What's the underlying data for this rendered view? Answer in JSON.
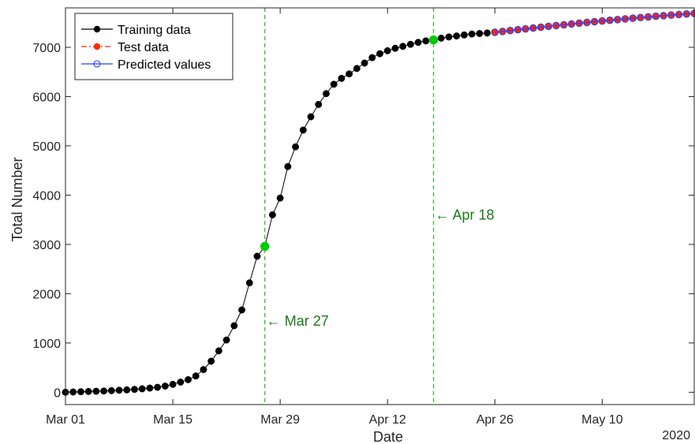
{
  "chart_data": {
    "type": "line",
    "title": "",
    "xlabel": "Date",
    "ylabel": "Total Number",
    "year_label": "2020",
    "x_domain": [
      "2020-03-01",
      "2020-05-22"
    ],
    "ylim": [
      -250,
      7800
    ],
    "yticks": [
      0,
      1000,
      2000,
      3000,
      4000,
      5000,
      6000,
      7000
    ],
    "xticks": [
      {
        "date": "2020-03-01",
        "label": "Mar 01"
      },
      {
        "date": "2020-03-15",
        "label": "Mar 15"
      },
      {
        "date": "2020-03-29",
        "label": "Mar 29"
      },
      {
        "date": "2020-04-12",
        "label": "Apr 12"
      },
      {
        "date": "2020-04-26",
        "label": "Apr 26"
      },
      {
        "date": "2020-05-10",
        "label": "May 10"
      }
    ],
    "grid": false,
    "legend_position": "top-left",
    "colors": {
      "training": "#000000",
      "test": "#ff2a00",
      "predicted": "#2a3cff",
      "marker": "#00cc00",
      "annotation": "#1a7a1a",
      "vline": "#33bb33"
    },
    "series": [
      {
        "name": "Training data",
        "style": "black line with filled black markers",
        "points": [
          [
            "2020-03-01",
            0
          ],
          [
            "2020-03-02",
            5
          ],
          [
            "2020-03-03",
            10
          ],
          [
            "2020-03-04",
            15
          ],
          [
            "2020-03-05",
            20
          ],
          [
            "2020-03-06",
            25
          ],
          [
            "2020-03-07",
            32
          ],
          [
            "2020-03-08",
            40
          ],
          [
            "2020-03-09",
            48
          ],
          [
            "2020-03-10",
            58
          ],
          [
            "2020-03-11",
            70
          ],
          [
            "2020-03-12",
            85
          ],
          [
            "2020-03-13",
            100
          ],
          [
            "2020-03-14",
            125
          ],
          [
            "2020-03-15",
            160
          ],
          [
            "2020-03-16",
            205
          ],
          [
            "2020-03-17",
            255
          ],
          [
            "2020-03-18",
            330
          ],
          [
            "2020-03-19",
            460
          ],
          [
            "2020-03-20",
            630
          ],
          [
            "2020-03-21",
            840
          ],
          [
            "2020-03-22",
            1060
          ],
          [
            "2020-03-23",
            1350
          ],
          [
            "2020-03-24",
            1670
          ],
          [
            "2020-03-25",
            2220
          ],
          [
            "2020-03-26",
            2760
          ],
          [
            "2020-03-27",
            2960
          ],
          [
            "2020-03-28",
            3600
          ],
          [
            "2020-03-29",
            3940
          ],
          [
            "2020-03-30",
            4580
          ],
          [
            "2020-03-31",
            4980
          ],
          [
            "2020-04-01",
            5320
          ],
          [
            "2020-04-02",
            5590
          ],
          [
            "2020-04-03",
            5840
          ],
          [
            "2020-04-04",
            6060
          ],
          [
            "2020-04-05",
            6250
          ],
          [
            "2020-04-06",
            6370
          ],
          [
            "2020-04-07",
            6460
          ],
          [
            "2020-04-08",
            6570
          ],
          [
            "2020-04-09",
            6680
          ],
          [
            "2020-04-10",
            6790
          ],
          [
            "2020-04-11",
            6870
          ],
          [
            "2020-04-12",
            6930
          ],
          [
            "2020-04-13",
            6980
          ],
          [
            "2020-04-14",
            7020
          ],
          [
            "2020-04-15",
            7060
          ],
          [
            "2020-04-16",
            7100
          ],
          [
            "2020-04-17",
            7130
          ],
          [
            "2020-04-18",
            7150
          ],
          [
            "2020-04-19",
            7185
          ],
          [
            "2020-04-20",
            7210
          ],
          [
            "2020-04-21",
            7230
          ],
          [
            "2020-04-22",
            7250
          ],
          [
            "2020-04-23",
            7270
          ],
          [
            "2020-04-24",
            7280
          ],
          [
            "2020-04-25",
            7290
          ]
        ]
      },
      {
        "name": "Test data",
        "style": "red dash-dot line with filled red markers",
        "points": [
          [
            "2020-04-26",
            7300
          ],
          [
            "2020-04-27",
            7320
          ],
          [
            "2020-04-28",
            7335
          ],
          [
            "2020-04-29",
            7355
          ],
          [
            "2020-04-30",
            7370
          ],
          [
            "2020-05-01",
            7390
          ],
          [
            "2020-05-02",
            7405
          ],
          [
            "2020-05-03",
            7420
          ],
          [
            "2020-05-04",
            7440
          ],
          [
            "2020-05-05",
            7455
          ],
          [
            "2020-05-06",
            7470
          ],
          [
            "2020-05-07",
            7490
          ],
          [
            "2020-05-08",
            7505
          ],
          [
            "2020-05-09",
            7520
          ],
          [
            "2020-05-10",
            7535
          ],
          [
            "2020-05-11",
            7550
          ],
          [
            "2020-05-12",
            7565
          ],
          [
            "2020-05-13",
            7580
          ],
          [
            "2020-05-14",
            7595
          ],
          [
            "2020-05-15",
            7605
          ],
          [
            "2020-05-16",
            7620
          ],
          [
            "2020-05-17",
            7630
          ],
          [
            "2020-05-18",
            7645
          ],
          [
            "2020-05-19",
            7655
          ],
          [
            "2020-05-20",
            7665
          ],
          [
            "2020-05-21",
            7675
          ],
          [
            "2020-05-22",
            7685
          ]
        ]
      },
      {
        "name": "Predicted values",
        "style": "blue line with open blue circle markers",
        "points": [
          [
            "2020-04-26",
            7305
          ],
          [
            "2020-04-27",
            7322
          ],
          [
            "2020-04-28",
            7340
          ],
          [
            "2020-04-29",
            7357
          ],
          [
            "2020-04-30",
            7374
          ],
          [
            "2020-05-01",
            7391
          ],
          [
            "2020-05-02",
            7408
          ],
          [
            "2020-05-03",
            7425
          ],
          [
            "2020-05-04",
            7441
          ],
          [
            "2020-05-05",
            7457
          ],
          [
            "2020-05-06",
            7473
          ],
          [
            "2020-05-07",
            7489
          ],
          [
            "2020-05-08",
            7504
          ],
          [
            "2020-05-09",
            7519
          ],
          [
            "2020-05-10",
            7534
          ],
          [
            "2020-05-11",
            7548
          ],
          [
            "2020-05-12",
            7562
          ],
          [
            "2020-05-13",
            7576
          ],
          [
            "2020-05-14",
            7590
          ],
          [
            "2020-05-15",
            7603
          ],
          [
            "2020-05-16",
            7616
          ],
          [
            "2020-05-17",
            7629
          ],
          [
            "2020-05-18",
            7641
          ],
          [
            "2020-05-19",
            7653
          ],
          [
            "2020-05-20",
            7665
          ],
          [
            "2020-05-21",
            7676
          ],
          [
            "2020-05-22",
            7687
          ]
        ]
      }
    ],
    "highlights": [
      {
        "date": "2020-03-27",
        "value": 2960,
        "label": "Mar 27"
      },
      {
        "date": "2020-04-18",
        "value": 7150,
        "label": "Apr 18"
      }
    ],
    "annotations": [
      {
        "date": "2020-03-27",
        "value": 1450,
        "text": "← Mar 27"
      },
      {
        "date": "2020-04-18",
        "value": 3600,
        "text": "← Apr 18"
      }
    ]
  }
}
